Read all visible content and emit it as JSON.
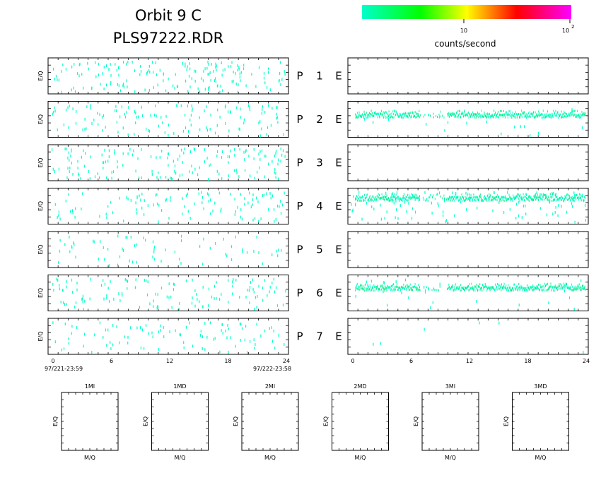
{
  "header": {
    "title_line1": "Orbit  9  C",
    "title_line2": "PLS97222.RDR"
  },
  "colorbar": {
    "tick_10": "10",
    "tick_100_base": "10",
    "tick_100_exp": "2",
    "label": "counts/second",
    "colors": [
      "#00ffcc",
      "#00ff00",
      "#ffff00",
      "#ff0000",
      "#ff00ff"
    ]
  },
  "chart_data": [
    {
      "type": "scatter",
      "title": "",
      "ylabel": "E/Q",
      "x_range": [
        0,
        24
      ],
      "xticks_left": [
        "0",
        "6",
        "12",
        "18",
        "24"
      ],
      "xticks_right": [
        "0",
        "6",
        "12",
        "18",
        "24"
      ],
      "start_time": "97/221-23:59",
      "end_time": "97/222-23:58",
      "rows": [
        {
          "p_label": "P",
          "p_num": "1",
          "e_label": "E",
          "p_density": 0.55,
          "e_band": null,
          "e_density": 0.0
        },
        {
          "p_label": "P",
          "p_num": "2",
          "e_label": "E",
          "p_density": 0.4,
          "e_band": 0.35,
          "e_density": 0.05
        },
        {
          "p_label": "P",
          "p_num": "3",
          "e_label": "E",
          "p_density": 0.5,
          "e_band": null,
          "e_density": 0.0
        },
        {
          "p_label": "P",
          "p_num": "4",
          "e_label": "E",
          "p_density": 0.35,
          "e_band": 0.25,
          "e_density": 0.35
        },
        {
          "p_label": "P",
          "p_num": "5",
          "e_label": "E",
          "p_density": 0.22,
          "e_band": null,
          "e_density": 0.0
        },
        {
          "p_label": "P",
          "p_num": "6",
          "e_label": "E",
          "p_density": 0.4,
          "e_band": 0.33,
          "e_density": 0.08
        },
        {
          "p_label": "P",
          "p_num": "7",
          "e_label": "E",
          "p_density": 0.3,
          "e_band": null,
          "e_density": 0.02
        }
      ]
    },
    {
      "type": "scatter",
      "xlabel": "M/Q",
      "ylabel": "E/Q",
      "panels": [
        "1MI",
        "1MD",
        "2MI",
        "2MD",
        "3MI",
        "3MD"
      ]
    }
  ]
}
